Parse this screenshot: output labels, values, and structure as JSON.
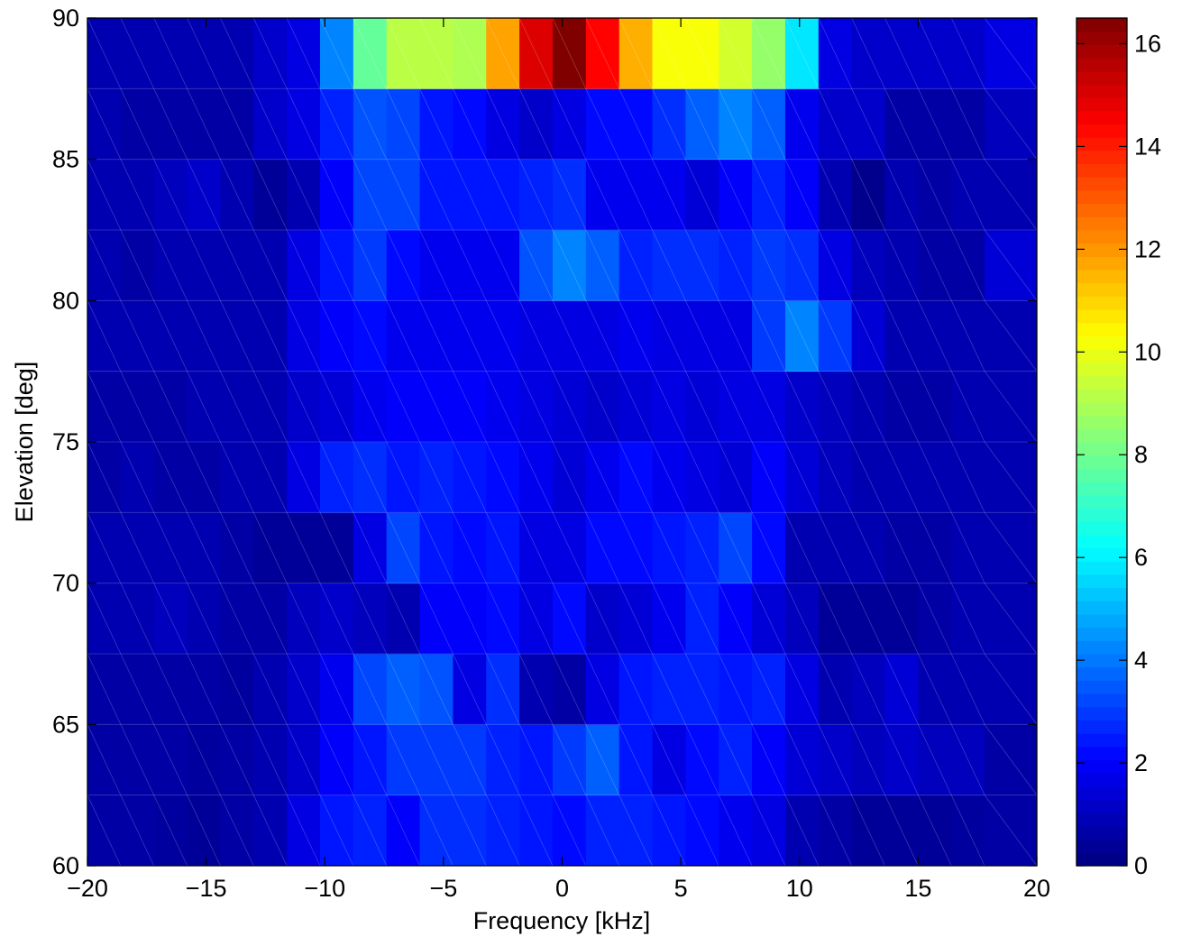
{
  "chart_data": {
    "type": "heatmap",
    "title": "",
    "xlabel": "Frequency [kHz]",
    "ylabel": "Elevation [deg]",
    "xlim": [
      -20,
      20
    ],
    "ylim": [
      60,
      90
    ],
    "x_ticks": [
      -20,
      -15,
      -10,
      -5,
      0,
      5,
      10,
      15,
      20
    ],
    "x_tick_labels": [
      "−20",
      "−15",
      "−10",
      "−5",
      "0",
      "5",
      "10",
      "15",
      "20"
    ],
    "y_ticks": [
      60,
      65,
      70,
      75,
      80,
      85,
      90
    ],
    "y_tick_labels": [
      "60",
      "65",
      "70",
      "75",
      "80",
      "85",
      "90"
    ],
    "x_bin_edges": [
      -20,
      -18.6,
      -17.2,
      -15.8,
      -14.4,
      -13.0,
      -11.6,
      -10.2,
      -8.8,
      -7.4,
      -6.0,
      -4.6,
      -3.2,
      -1.8,
      -0.4,
      1.0,
      2.4,
      3.8,
      5.2,
      6.6,
      8.0,
      9.4,
      10.8,
      12.2,
      13.6,
      15.0,
      16.4,
      17.8,
      20
    ],
    "y_bin_edges": [
      60,
      62.5,
      65,
      67.5,
      70,
      72.5,
      75,
      77.5,
      80,
      82.5,
      85,
      87.5,
      90
    ],
    "values": [
      [
        0.6,
        0.6,
        0.5,
        0.4,
        0.6,
        0.8,
        1.6,
        2.4,
        2.6,
        2.0,
        2.8,
        2.8,
        2.6,
        2.4,
        2.2,
        2.6,
        2.6,
        2.4,
        2.2,
        1.8,
        1.6,
        0.8,
        0.6,
        0.4,
        0.4,
        0.4,
        0.5,
        0.6
      ],
      [
        0.6,
        0.6,
        0.6,
        0.5,
        0.6,
        0.8,
        1.2,
        2.0,
        2.4,
        3.0,
        3.0,
        3.0,
        2.6,
        2.4,
        3.0,
        3.6,
        2.4,
        1.6,
        2.2,
        2.6,
        2.0,
        1.4,
        1.2,
        1.0,
        1.2,
        1.0,
        1.0,
        0.6
      ],
      [
        0.6,
        0.6,
        0.6,
        0.6,
        0.5,
        0.8,
        1.2,
        1.8,
        3.2,
        3.6,
        3.4,
        1.6,
        2.8,
        0.8,
        0.6,
        1.6,
        2.4,
        2.6,
        2.6,
        2.4,
        2.6,
        1.6,
        0.8,
        1.0,
        1.4,
        0.8,
        0.8,
        0.8
      ],
      [
        0.8,
        0.8,
        1.0,
        0.8,
        0.6,
        0.6,
        1.0,
        1.2,
        1.0,
        0.8,
        2.0,
        2.0,
        2.2,
        1.6,
        2.2,
        1.2,
        1.4,
        1.8,
        2.6,
        2.0,
        1.4,
        1.0,
        0.4,
        0.4,
        0.4,
        0.6,
        0.8,
        0.8
      ],
      [
        0.8,
        0.8,
        0.8,
        0.8,
        0.6,
        0.4,
        0.4,
        0.4,
        1.6,
        3.2,
        2.4,
        2.2,
        2.4,
        1.6,
        1.6,
        2.2,
        2.2,
        2.4,
        2.6,
        3.2,
        2.2,
        0.8,
        0.8,
        0.8,
        0.6,
        0.6,
        0.8,
        0.8
      ],
      [
        0.6,
        0.8,
        0.6,
        0.6,
        0.8,
        0.8,
        1.6,
        2.6,
        2.8,
        2.4,
        2.6,
        2.4,
        2.2,
        1.8,
        1.4,
        1.8,
        2.2,
        1.8,
        1.6,
        1.4,
        2.0,
        1.4,
        1.0,
        0.8,
        0.8,
        0.8,
        0.8,
        0.8
      ],
      [
        0.6,
        0.6,
        0.6,
        0.8,
        0.8,
        0.8,
        1.2,
        1.4,
        1.8,
        2.0,
        2.0,
        2.0,
        1.8,
        1.6,
        1.4,
        1.2,
        1.4,
        1.6,
        1.4,
        1.6,
        1.6,
        1.2,
        1.0,
        0.8,
        0.6,
        0.6,
        0.8,
        0.8
      ],
      [
        0.8,
        0.8,
        0.8,
        0.8,
        0.8,
        0.8,
        1.6,
        2.0,
        2.2,
        1.8,
        1.8,
        1.8,
        1.8,
        1.6,
        1.6,
        1.6,
        1.8,
        1.6,
        1.6,
        1.6,
        3.0,
        4.2,
        3.0,
        1.4,
        0.8,
        0.8,
        0.8,
        0.8
      ],
      [
        0.8,
        0.6,
        0.8,
        0.8,
        0.8,
        0.8,
        1.6,
        2.4,
        3.0,
        2.2,
        1.8,
        1.8,
        1.8,
        3.4,
        4.2,
        3.6,
        2.6,
        2.8,
        2.8,
        2.6,
        3.0,
        2.8,
        1.6,
        1.0,
        0.8,
        0.6,
        0.6,
        1.4
      ],
      [
        0.8,
        0.8,
        1.0,
        1.2,
        0.8,
        0.4,
        0.8,
        2.0,
        3.2,
        3.2,
        2.4,
        2.4,
        2.4,
        2.6,
        2.8,
        1.8,
        1.8,
        1.8,
        1.4,
        2.0,
        2.6,
        2.0,
        0.8,
        0.2,
        0.8,
        0.6,
        0.8,
        0.8
      ],
      [
        0.8,
        0.6,
        0.6,
        0.6,
        0.6,
        1.2,
        1.6,
        2.6,
        3.4,
        3.2,
        2.4,
        2.2,
        1.6,
        1.2,
        1.6,
        2.2,
        2.2,
        2.8,
        3.6,
        4.2,
        3.6,
        1.8,
        1.2,
        1.2,
        0.6,
        0.6,
        0.6,
        1.0
      ],
      [
        0.8,
        0.8,
        0.8,
        0.8,
        0.8,
        1.2,
        1.6,
        4.2,
        7.8,
        9.2,
        9.2,
        9.0,
        11.8,
        15.0,
        16.5,
        14.4,
        11.6,
        10.2,
        10.2,
        9.6,
        8.6,
        5.8,
        1.6,
        1.2,
        1.2,
        1.2,
        1.2,
        1.6
      ]
    ],
    "colorbar": {
      "min": 0,
      "max": 16.5,
      "ticks": [
        0,
        2,
        4,
        6,
        8,
        10,
        12,
        14,
        16
      ],
      "tick_labels": [
        "0",
        "2",
        "4",
        "6",
        "8",
        "10",
        "12",
        "14",
        "16"
      ],
      "colormap": "jet"
    },
    "grid": false,
    "legend": "none"
  }
}
